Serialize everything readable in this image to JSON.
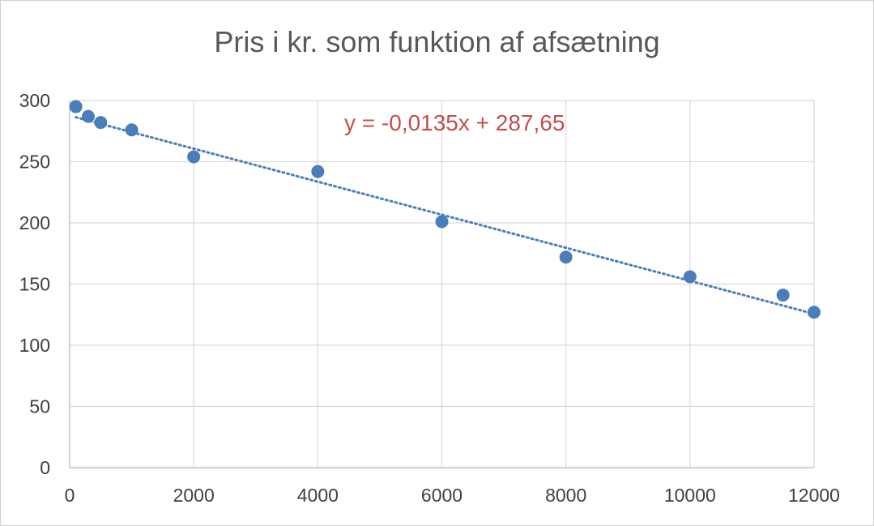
{
  "chart_data": {
    "type": "scatter",
    "title": "Pris i kr. som funktion af afsætning",
    "xlabel": "",
    "ylabel": "",
    "xlim": [
      0,
      12000
    ],
    "ylim": [
      0,
      300
    ],
    "x_ticks": [
      0,
      2000,
      4000,
      6000,
      8000,
      10000,
      12000
    ],
    "y_ticks": [
      0,
      50,
      100,
      150,
      200,
      250,
      300
    ],
    "grid": true,
    "legend": "none",
    "series": [
      {
        "color": "#4a7ebb",
        "points": [
          {
            "x": 100,
            "y": 295
          },
          {
            "x": 300,
            "y": 287
          },
          {
            "x": 500,
            "y": 282
          },
          {
            "x": 1000,
            "y": 276
          },
          {
            "x": 2000,
            "y": 254
          },
          {
            "x": 4000,
            "y": 242
          },
          {
            "x": 6000,
            "y": 201
          },
          {
            "x": 8000,
            "y": 172
          },
          {
            "x": 10000,
            "y": 156
          },
          {
            "x": 11500,
            "y": 141
          },
          {
            "x": 12000,
            "y": 127
          }
        ]
      }
    ],
    "trendline": {
      "type": "linear",
      "slope": -0.0135,
      "intercept": 287.65,
      "x_range": [
        100,
        12000
      ],
      "color": "#4a7ebb",
      "style": "dotted",
      "equation_label": "y = -0,0135x + 287,65",
      "equation_color": "#c0504d"
    }
  }
}
